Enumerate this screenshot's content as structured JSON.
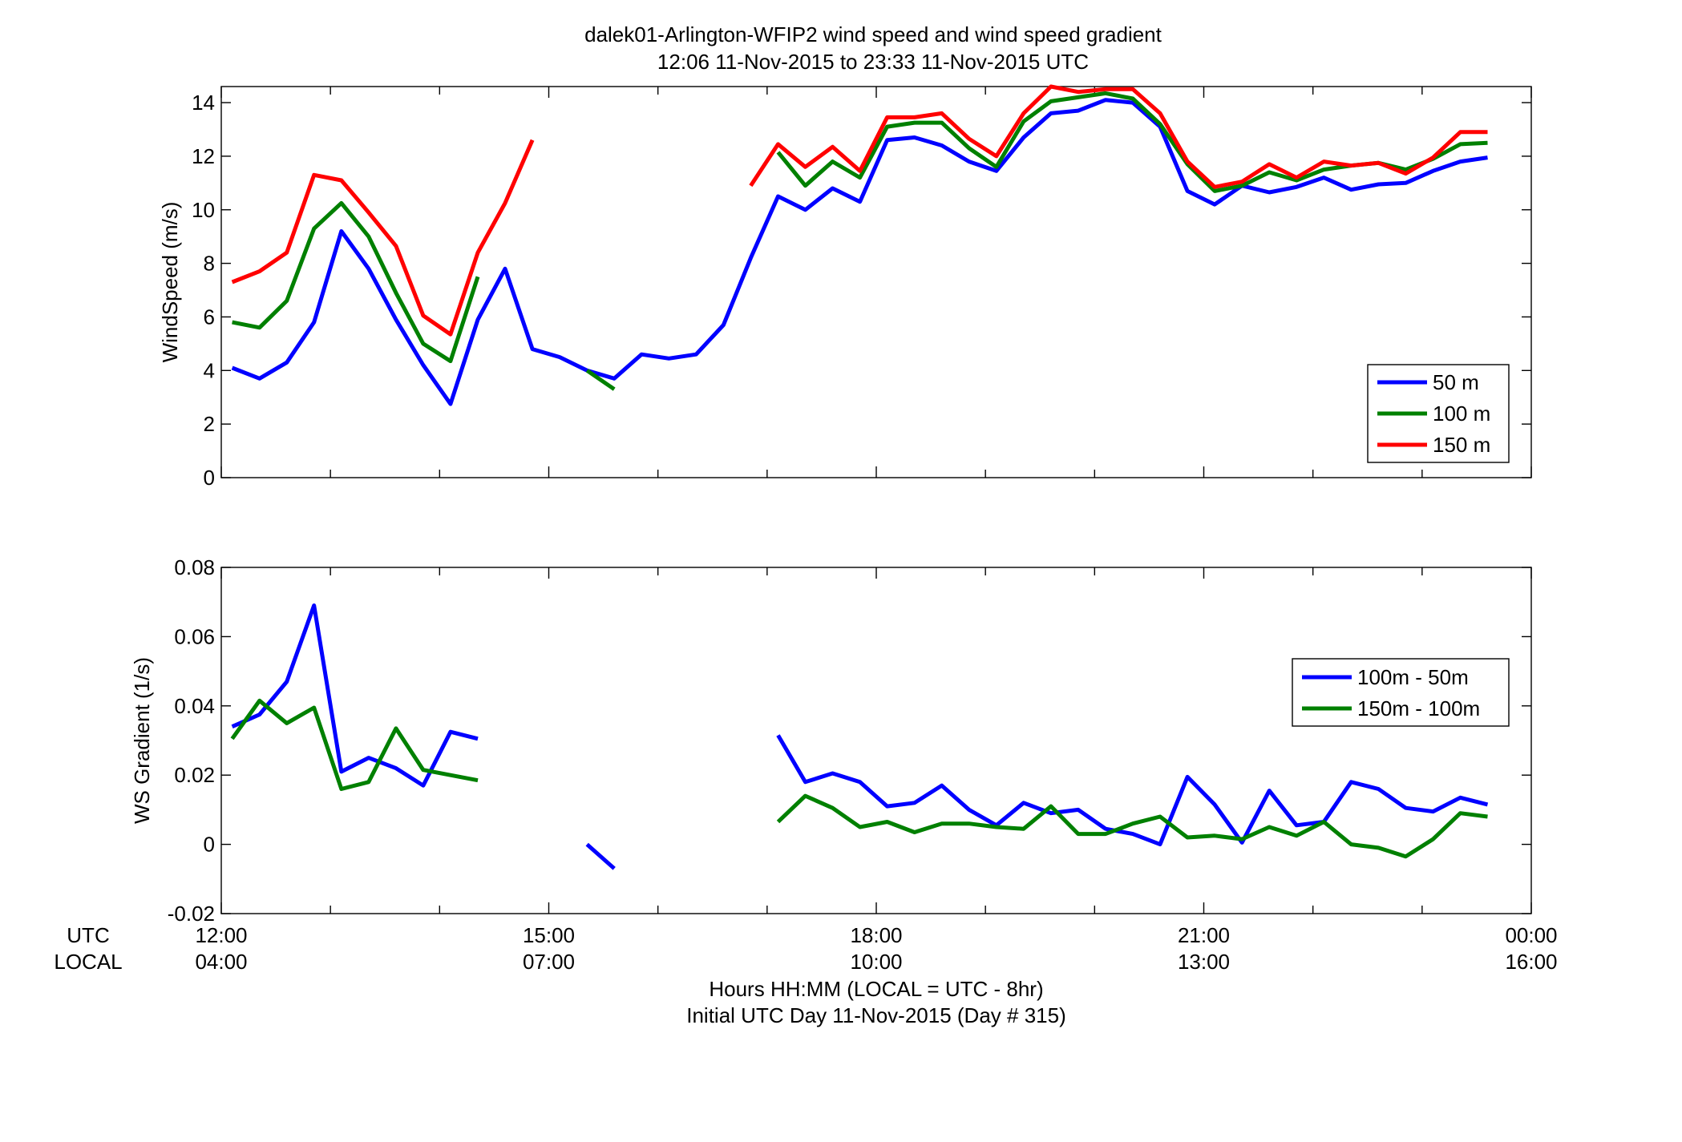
{
  "chart_data": [
    {
      "type": "line",
      "panel": "wind-speed",
      "title": "dalek01-Arlington-WFIP2  wind speed and wind speed gradient",
      "subtitle": "12:06 11-Nov-2015 to 23:33 11-Nov-2015  UTC",
      "ylabel": "WindSpeed (m/s)",
      "ylim": [
        0,
        14.6
      ],
      "yticks": [
        "0",
        "2",
        "4",
        "6",
        "8",
        "10",
        "12",
        "14"
      ],
      "yticks_values": [
        0,
        2,
        4,
        6,
        8,
        10,
        12,
        14
      ],
      "xlim": [
        12.0,
        24.0
      ],
      "grid": false,
      "legend_position": "bottom-right",
      "x": [
        12.1,
        12.35,
        12.6,
        12.85,
        13.1,
        13.35,
        13.6,
        13.85,
        14.1,
        14.35,
        14.6,
        14.85,
        15.1,
        15.35,
        15.6,
        15.85,
        16.1,
        16.35,
        16.6,
        16.85,
        17.1,
        17.35,
        17.6,
        17.85,
        18.1,
        18.35,
        18.6,
        18.85,
        19.1,
        19.35,
        19.6,
        19.85,
        20.1,
        20.35,
        20.6,
        20.85,
        21.1,
        21.35,
        21.6,
        21.85,
        22.1,
        22.35,
        22.6,
        22.85,
        23.1,
        23.35,
        23.6
      ],
      "series": [
        {
          "name": "50 m",
          "color": "#0000ff",
          "values": [
            4.1,
            3.7,
            4.3,
            5.8,
            9.2,
            7.8,
            5.9,
            4.2,
            2.75,
            5.9,
            7.8,
            4.8,
            4.5,
            4.0,
            3.7,
            4.6,
            4.45,
            4.6,
            5.7,
            8.2,
            10.5,
            10.0,
            10.8,
            10.3,
            12.6,
            12.7,
            12.4,
            11.8,
            11.45,
            12.7,
            13.6,
            13.7,
            14.1,
            14.0,
            13.1,
            10.7,
            10.2,
            10.9,
            10.65,
            10.85,
            11.2,
            10.75,
            10.95,
            11.0,
            11.45,
            11.8,
            11.95
          ]
        },
        {
          "name": "100 m",
          "color": "#008000",
          "values": [
            5.8,
            5.6,
            6.6,
            9.3,
            10.25,
            9.0,
            6.9,
            5.0,
            4.35,
            7.5,
            null,
            null,
            null,
            4.0,
            3.3,
            null,
            null,
            null,
            null,
            null,
            12.15,
            10.9,
            11.8,
            11.2,
            13.1,
            13.25,
            13.25,
            12.3,
            11.6,
            13.3,
            14.05,
            14.2,
            14.35,
            14.15,
            13.2,
            11.7,
            10.7,
            10.9,
            11.4,
            11.1,
            11.5,
            11.65,
            11.75,
            11.5,
            11.9,
            12.45,
            12.5
          ]
        },
        {
          "name": "150 m",
          "color": "#ff0000",
          "values": [
            7.3,
            7.7,
            8.4,
            11.3,
            11.1,
            9.9,
            8.65,
            6.05,
            5.35,
            8.4,
            10.25,
            12.6,
            null,
            null,
            null,
            null,
            null,
            null,
            null,
            10.9,
            12.45,
            11.6,
            12.35,
            11.45,
            13.45,
            13.45,
            13.6,
            12.65,
            12.0,
            13.6,
            14.6,
            14.4,
            14.5,
            14.5,
            13.6,
            11.8,
            10.85,
            11.05,
            11.7,
            11.2,
            11.8,
            11.65,
            11.75,
            11.35,
            11.95,
            12.9,
            12.9
          ]
        }
      ]
    },
    {
      "type": "line",
      "panel": "ws-gradient",
      "ylabel": "WS Gradient (1/s)",
      "ylim": [
        -0.02,
        0.08
      ],
      "yticks": [
        "-0.02",
        "0",
        "0.02",
        "0.04",
        "0.06",
        "0.08"
      ],
      "yticks_values": [
        -0.02,
        0,
        0.02,
        0.04,
        0.06,
        0.08
      ],
      "xlim": [
        12.0,
        24.0
      ],
      "grid": false,
      "legend_position": "middle-right",
      "x": [
        12.1,
        12.35,
        12.6,
        12.85,
        13.1,
        13.35,
        13.6,
        13.85,
        14.1,
        14.35,
        14.6,
        14.85,
        15.1,
        15.35,
        15.6,
        15.85,
        16.1,
        16.35,
        16.6,
        16.85,
        17.1,
        17.35,
        17.6,
        17.85,
        18.1,
        18.35,
        18.6,
        18.85,
        19.1,
        19.35,
        19.6,
        19.85,
        20.1,
        20.35,
        20.6,
        20.85,
        21.1,
        21.35,
        21.6,
        21.85,
        22.1,
        22.35,
        22.6,
        22.85,
        23.1,
        23.35,
        23.6
      ],
      "series": [
        {
          "name": "100m - 50m",
          "color": "#0000ff",
          "values": [
            0.034,
            0.0375,
            0.047,
            0.069,
            0.021,
            0.025,
            0.022,
            0.017,
            0.0325,
            0.0305,
            null,
            null,
            null,
            0.0,
            -0.007,
            null,
            null,
            null,
            null,
            null,
            0.0315,
            0.018,
            0.0205,
            0.018,
            0.011,
            0.012,
            0.017,
            0.01,
            0.0055,
            0.012,
            0.009,
            0.01,
            0.0045,
            0.003,
            0.0,
            0.0195,
            0.0115,
            0.0005,
            0.0155,
            0.0055,
            0.0065,
            0.018,
            0.016,
            0.0105,
            0.0095,
            0.0135,
            0.0115
          ]
        },
        {
          "name": "150m - 100m",
          "color": "#008000",
          "values": [
            0.0305,
            0.0415,
            0.035,
            0.0395,
            0.016,
            0.018,
            0.0335,
            0.0215,
            0.02,
            0.0185,
            null,
            null,
            null,
            null,
            null,
            null,
            null,
            null,
            null,
            null,
            0.0065,
            0.014,
            0.0105,
            0.005,
            0.0065,
            0.0035,
            0.006,
            0.006,
            0.005,
            0.0045,
            0.011,
            0.003,
            0.003,
            0.006,
            0.008,
            0.002,
            0.0025,
            0.0015,
            0.005,
            0.0025,
            0.0065,
            0.0,
            -0.001,
            -0.0035,
            0.0015,
            0.009,
            0.008
          ]
        }
      ]
    }
  ],
  "x_axis": {
    "tick_values": [
      12,
      15,
      18,
      21,
      24
    ],
    "utc_label": "UTC",
    "local_label": "LOCAL",
    "utc_ticks": [
      "12:00",
      "15:00",
      "18:00",
      "21:00",
      "00:00"
    ],
    "local_ticks": [
      "04:00",
      "07:00",
      "10:00",
      "13:00",
      "16:00"
    ],
    "xlabel_line1": "Hours HH:MM  (LOCAL = UTC - 8hr)",
    "xlabel_line2": "Initial UTC Day 11-Nov-2015 (Day # 315)"
  }
}
